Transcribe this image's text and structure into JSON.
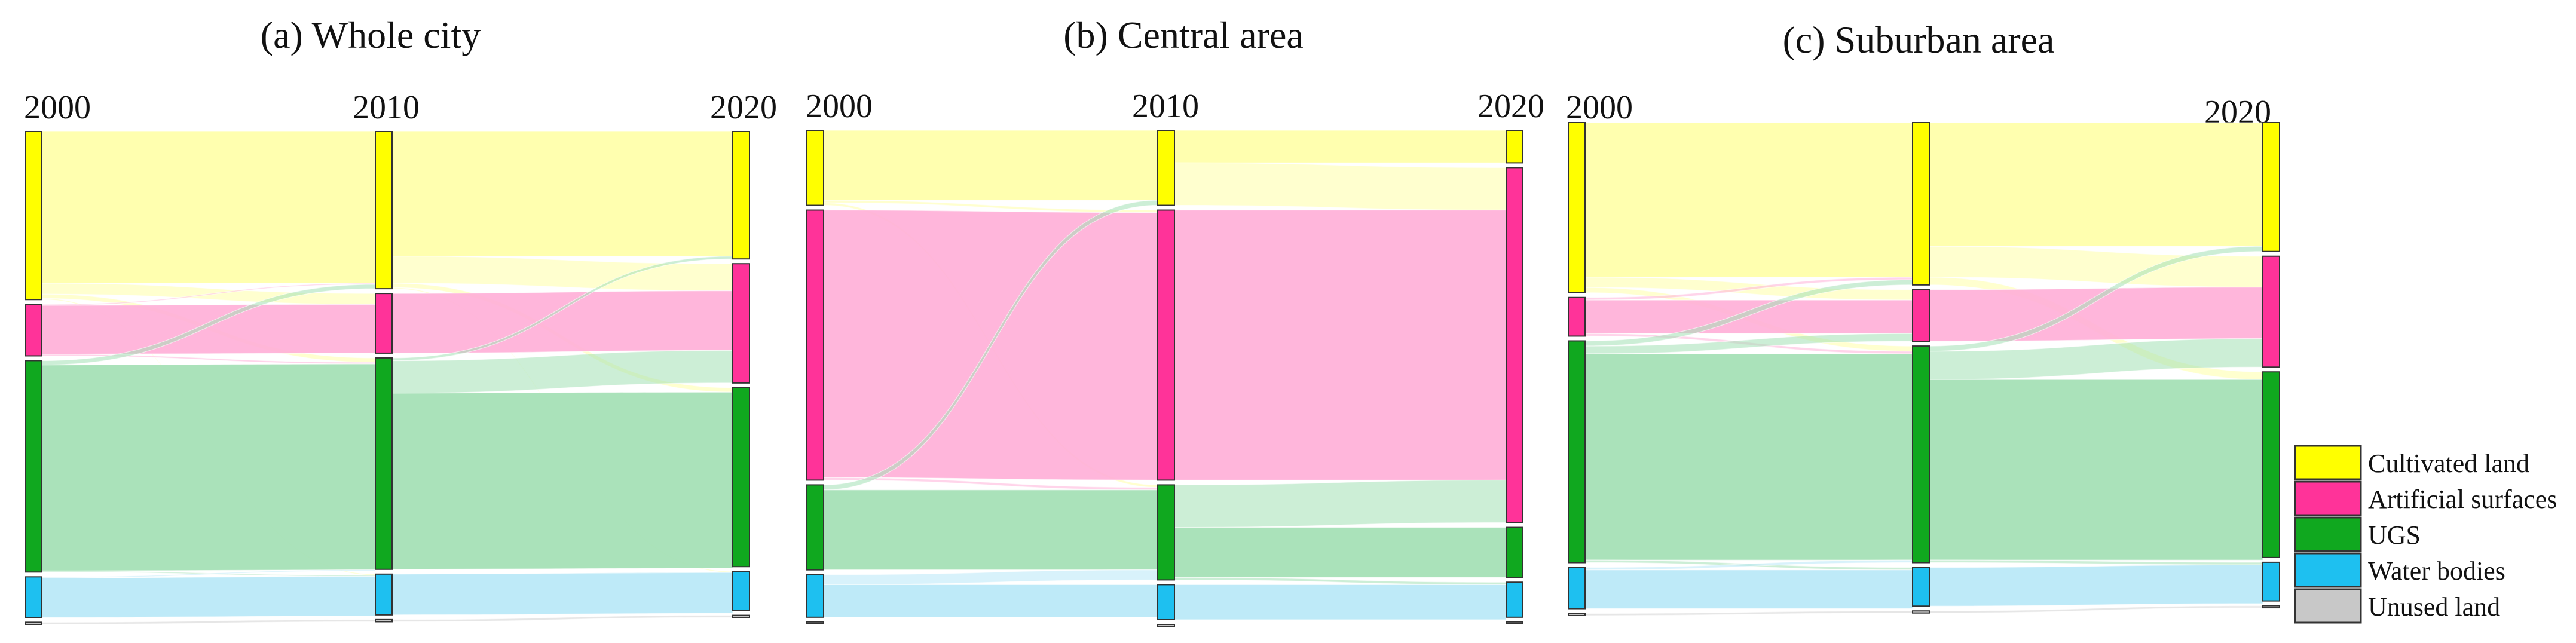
{
  "figure": {
    "legend": [
      {
        "key": "cultivated",
        "label": "Cultivated land",
        "color": "#ffff00",
        "flow": "#ffffa8"
      },
      {
        "key": "artificial",
        "label": "Artificial surfaces",
        "color": "#ff3399",
        "flow": "#ffb0d8"
      },
      {
        "key": "ugs",
        "label": "UGS",
        "color": "#10a81f",
        "flow": "#a3e0b4"
      },
      {
        "key": "water",
        "label": "Water bodies",
        "color": "#1ec0f0",
        "flow": "#b8e8f7"
      },
      {
        "key": "unused",
        "label": "Unused land",
        "color": "#c8c8c8",
        "flow": "#e4e4e4"
      }
    ]
  },
  "chart_data": [
    {
      "type": "sankey",
      "title": "(a) Whole city",
      "years": [
        "2000",
        "2010",
        "2020"
      ],
      "categories": [
        "Cultivated land",
        "Artificial surfaces",
        "UGS",
        "Water bodies",
        "Unused land"
      ],
      "shares": {
        "2000": [
          0.31,
          0.095,
          0.39,
          0.075,
          0.004
        ],
        "2010": [
          0.29,
          0.11,
          0.39,
          0.075,
          0.004
        ],
        "2020": [
          0.235,
          0.22,
          0.33,
          0.072,
          0.004
        ]
      },
      "flows": [
        [
          [
            0.28,
            0.02,
            0.008,
            0.002,
            0.0
          ],
          [
            0.002,
            0.09,
            0.003,
            0.0,
            0.0
          ],
          [
            0.008,
            0.0,
            0.38,
            0.002,
            0.0
          ],
          [
            0.0,
            0.0,
            0.002,
            0.073,
            0.0
          ],
          [
            0.0,
            0.0,
            0.0,
            0.0,
            0.004
          ]
        ],
        [
          [
            0.23,
            0.05,
            0.008,
            0.002,
            0.0
          ],
          [
            0.0,
            0.11,
            0.0,
            0.0,
            0.0
          ],
          [
            0.005,
            0.06,
            0.325,
            0.0,
            0.0
          ],
          [
            0.0,
            0.0,
            0.0,
            0.075,
            0.0
          ],
          [
            0.0,
            0.0,
            0.0,
            0.0,
            0.004
          ]
        ]
      ]
    },
    {
      "type": "sankey",
      "title": "(b) Central area",
      "years": [
        "2000",
        "2010",
        "2020"
      ],
      "categories": [
        "Cultivated land",
        "Artificial surfaces",
        "UGS",
        "Water bodies",
        "Unused land"
      ],
      "shares": {
        "2000": [
          0.15,
          0.54,
          0.17,
          0.085,
          0.0
        ],
        "2010": [
          0.15,
          0.54,
          0.19,
          0.07,
          0.0
        ],
        "2020": [
          0.065,
          0.71,
          0.1,
          0.07,
          0.0
        ]
      },
      "flows": [
        [
          [
            0.14,
            0.005,
            0.005,
            0.0,
            0.0
          ],
          [
            0.0,
            0.535,
            0.005,
            0.0,
            0.0
          ],
          [
            0.01,
            0.0,
            0.16,
            0.0,
            0.0
          ],
          [
            0.0,
            0.0,
            0.02,
            0.065,
            0.0
          ],
          [
            0.0,
            0.0,
            0.0,
            0.0,
            0.0
          ]
        ],
        [
          [
            0.065,
            0.085,
            0.0,
            0.0,
            0.0
          ],
          [
            0.0,
            0.54,
            0.0,
            0.0,
            0.0
          ],
          [
            0.0,
            0.085,
            0.1,
            0.005,
            0.0
          ],
          [
            0.0,
            0.0,
            0.0,
            0.07,
            0.0
          ],
          [
            0.0,
            0.0,
            0.0,
            0.0,
            0.0
          ]
        ]
      ]
    },
    {
      "type": "sankey",
      "title": "(c) Suburban area",
      "years": [
        "2000",
        "2010",
        "2020"
      ],
      "categories": [
        "Cultivated land",
        "Artificial surfaces",
        "UGS",
        "Water bodies",
        "Unused land"
      ],
      "shares": {
        "2000": [
          0.33,
          0.075,
          0.43,
          0.08,
          0.004
        ],
        "2010": [
          0.315,
          0.1,
          0.42,
          0.075,
          0.004
        ],
        "2020": [
          0.25,
          0.215,
          0.36,
          0.075,
          0.004
        ]
      },
      "flows": [
        [
          [
            0.3,
            0.02,
            0.01,
            0.0,
            0.0
          ],
          [
            0.005,
            0.065,
            0.005,
            0.0,
            0.0
          ],
          [
            0.01,
            0.015,
            0.4,
            0.005,
            0.0
          ],
          [
            0.0,
            0.0,
            0.005,
            0.075,
            0.0
          ],
          [
            0.0,
            0.0,
            0.0,
            0.0,
            0.004
          ]
        ],
        [
          [
            0.24,
            0.06,
            0.015,
            0.0,
            0.0
          ],
          [
            0.0,
            0.1,
            0.0,
            0.0,
            0.0
          ],
          [
            0.01,
            0.055,
            0.35,
            0.005,
            0.0
          ],
          [
            0.0,
            0.0,
            0.0,
            0.075,
            0.0
          ],
          [
            0.0,
            0.0,
            0.0,
            0.0,
            0.004
          ]
        ]
      ]
    }
  ]
}
